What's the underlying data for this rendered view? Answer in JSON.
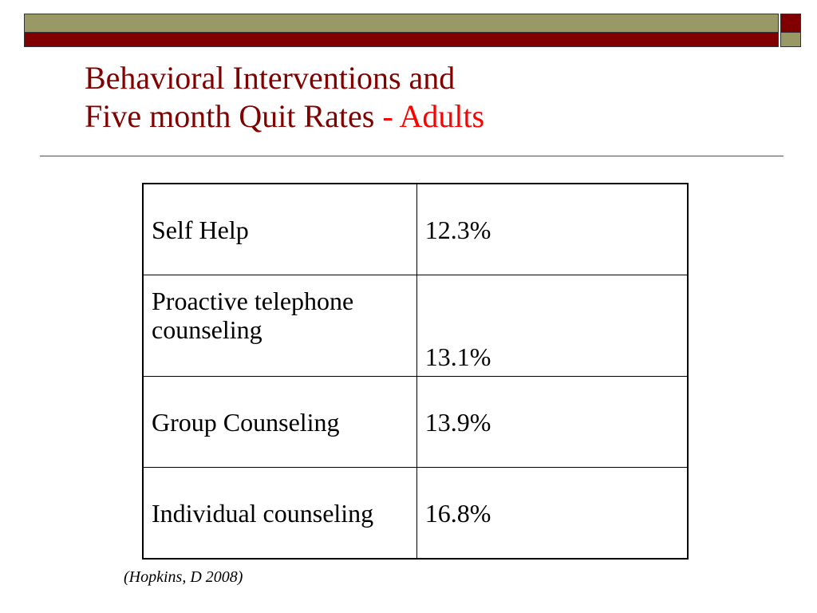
{
  "colors": {
    "title": "#800000",
    "title_accent": "#ff0000",
    "bar_olive": "#999966",
    "bar_maroon": "#800000"
  },
  "slide": {
    "title_line1": "Behavioral Interventions and",
    "title_line2": "Five month Quit Rates",
    "title_accent": "- Adults"
  },
  "table": {
    "rows": [
      {
        "intervention": "Self Help",
        "quit_rate": "12.3%"
      },
      {
        "intervention": "Proactive telephone counseling",
        "quit_rate": "13.1%"
      },
      {
        "intervention": "Group Counseling",
        "quit_rate": "13.9%"
      },
      {
        "intervention": "Individual counseling",
        "quit_rate": "16.8%"
      }
    ]
  },
  "citation": "(Hopkins, D 2008)"
}
